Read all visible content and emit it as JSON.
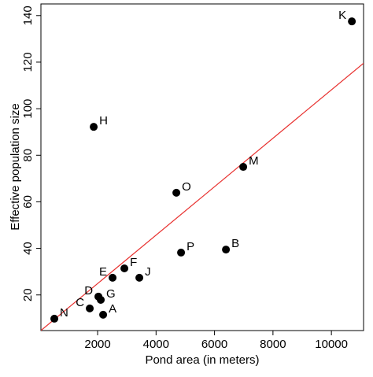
{
  "chart_data": {
    "type": "scatter",
    "xlabel": "Pond area (in meters)",
    "ylabel": "Effective population size",
    "point_labels": [
      "K",
      "H",
      "M",
      "O",
      "B",
      "P",
      "F",
      "E",
      "J",
      "D",
      "G",
      "C",
      "A",
      "N"
    ],
    "x": [
      10700,
      1866,
      6983,
      4694,
      6391,
      4855,
      2916,
      2512,
      3428,
      2027,
      2108,
      1731,
      2189,
      519
    ],
    "values": [
      137.5,
      92.2,
      75,
      63.9,
      39.5,
      38.2,
      31.4,
      27.4,
      27.4,
      19.3,
      17.9,
      14.2,
      11.5,
      9.8
    ],
    "color": "#000000",
    "regression_line": {
      "intercept": 4.1,
      "slope": 0.0104,
      "color": "#e8312f"
    },
    "xlim": [
      60,
      11100
    ],
    "ylim": [
      4.7,
      145
    ],
    "xticks": [
      2000,
      4000,
      6000,
      8000,
      10000
    ],
    "yticks": [
      20,
      40,
      60,
      80,
      100,
      120,
      140
    ]
  }
}
